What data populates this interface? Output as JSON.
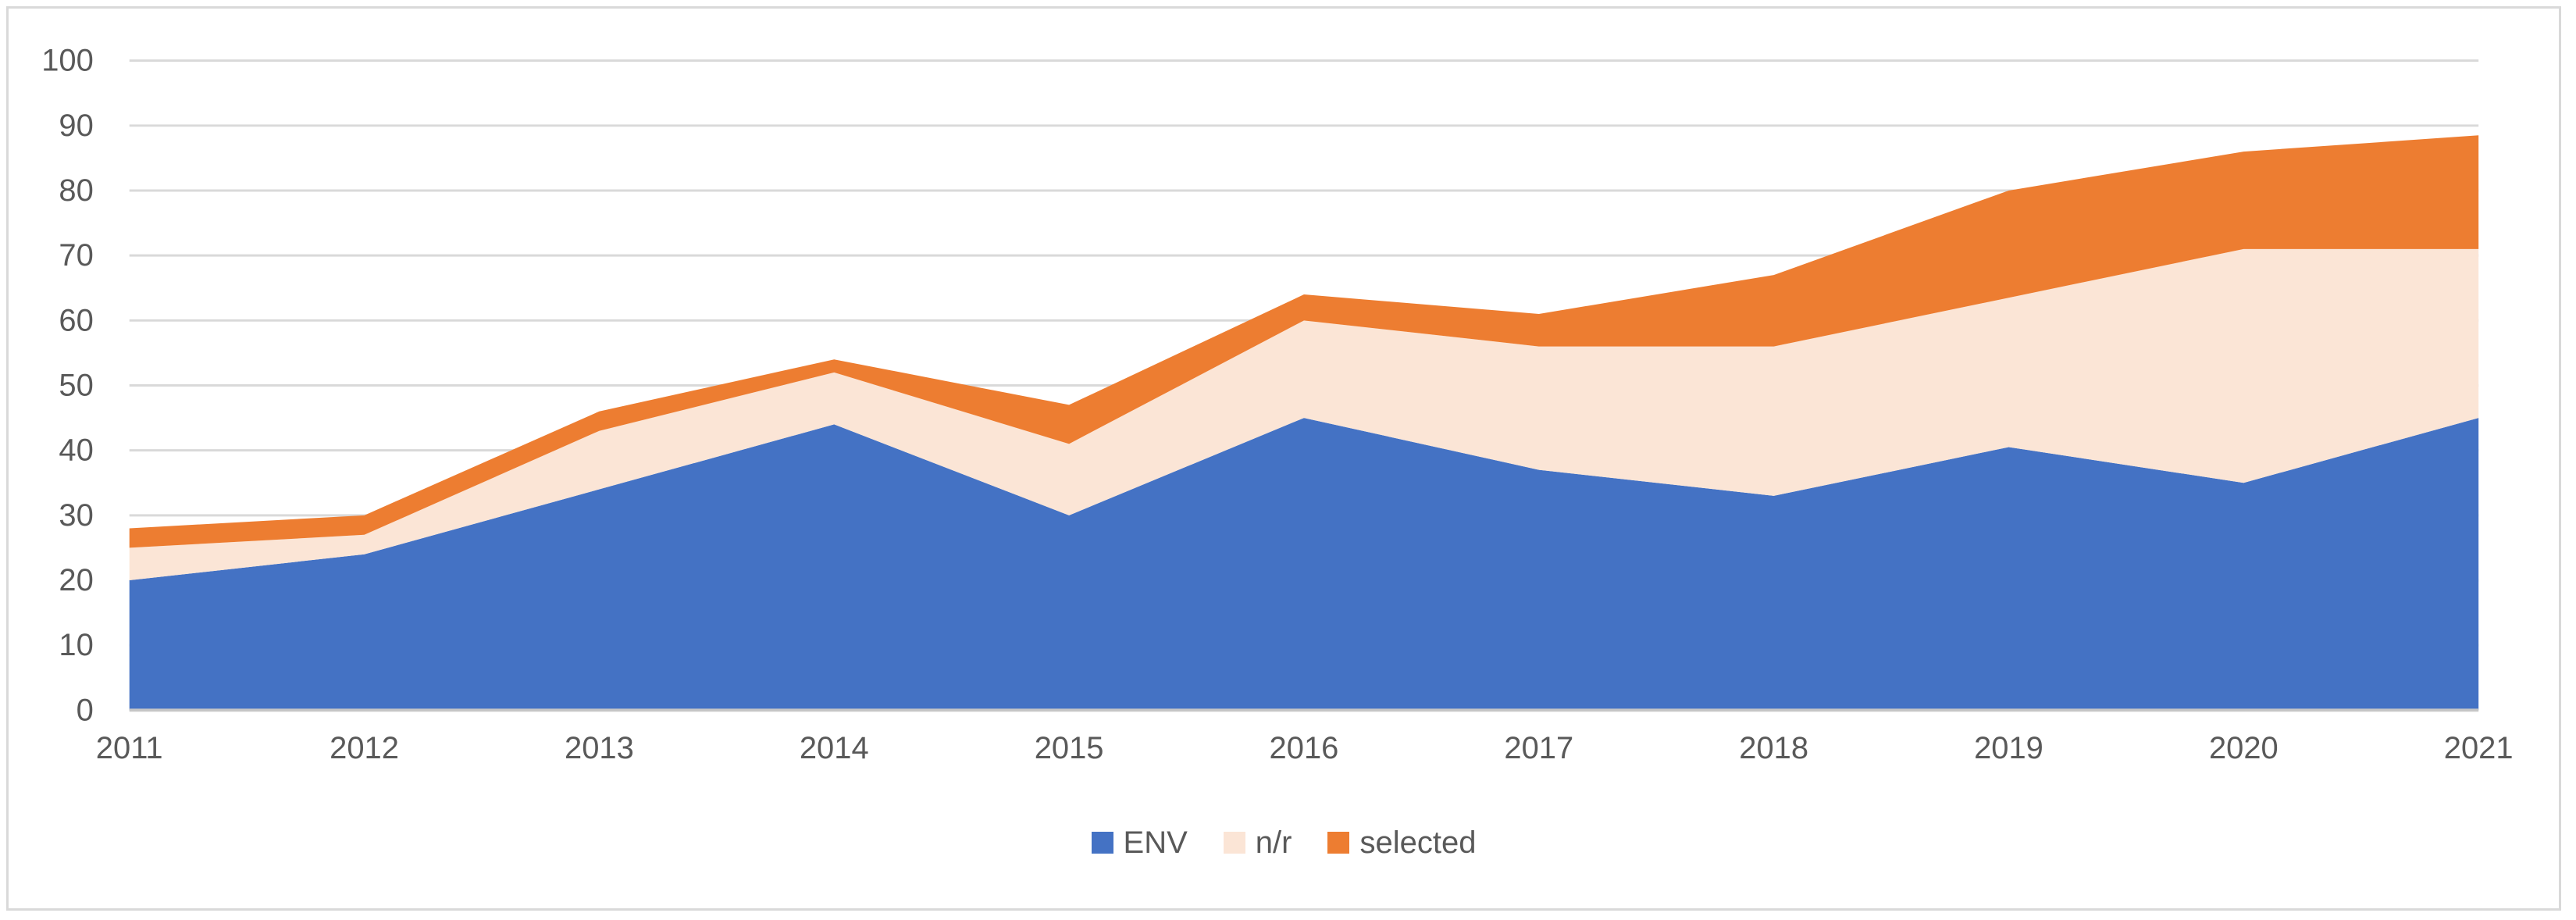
{
  "chart_data": {
    "type": "area",
    "stacked": true,
    "title": "",
    "xlabel": "",
    "ylabel": "",
    "categories": [
      "2011",
      "2012",
      "2013",
      "2014",
      "2015",
      "2016",
      "2017",
      "2018",
      "2019",
      "2020",
      "2021"
    ],
    "series": [
      {
        "name": "ENV",
        "color": "#4472C4",
        "values": [
          20,
          24,
          34,
          44,
          30,
          45,
          37,
          33,
          40.5,
          35,
          45
        ]
      },
      {
        "name": "n/r",
        "color": "#FBE5D6",
        "values": [
          5,
          3,
          9,
          8,
          11,
          15,
          19,
          23,
          23,
          36,
          26
        ]
      },
      {
        "name": "selected",
        "color": "#ED7D31",
        "values": [
          3,
          3,
          3,
          2,
          6,
          4,
          5,
          11,
          16.5,
          15,
          17.5
        ]
      }
    ],
    "cumulative_tops": {
      "ENV": [
        20,
        24,
        34,
        44,
        30,
        45,
        37,
        33,
        40.5,
        35,
        45
      ],
      "n_r": [
        25,
        27,
        43,
        52,
        41,
        60,
        56,
        56,
        63.5,
        71,
        71
      ],
      "selected": [
        28,
        30,
        46,
        54,
        47,
        64,
        61,
        67,
        80,
        86,
        88.5
      ]
    },
    "ylim": [
      0,
      100
    ],
    "yticks": [
      0,
      10,
      20,
      30,
      40,
      50,
      60,
      70,
      80,
      90,
      100
    ],
    "grid": true,
    "legend_position": "bottom-center",
    "colors": {
      "gridline": "#D9D9D9",
      "axis_line": "#C6C6C6",
      "tick_label": "#595959",
      "background": "#FFFFFF",
      "frame_border": "#D9D9D9"
    },
    "tick_font_size": 40
  },
  "legend": {
    "items": [
      {
        "label": "ENV",
        "color": "#4472C4"
      },
      {
        "label": "n/r",
        "color": "#FBE5D6"
      },
      {
        "label": "selected",
        "color": "#ED7D31"
      }
    ]
  }
}
